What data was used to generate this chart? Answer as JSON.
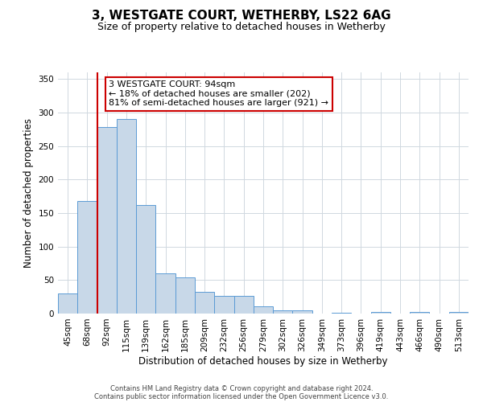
{
  "title": "3, WESTGATE COURT, WETHERBY, LS22 6AG",
  "subtitle": "Size of property relative to detached houses in Wetherby",
  "xlabel": "Distribution of detached houses by size in Wetherby",
  "ylabel": "Number of detached properties",
  "bar_labels": [
    "45sqm",
    "68sqm",
    "92sqm",
    "115sqm",
    "139sqm",
    "162sqm",
    "185sqm",
    "209sqm",
    "232sqm",
    "256sqm",
    "279sqm",
    "302sqm",
    "326sqm",
    "349sqm",
    "373sqm",
    "396sqm",
    "419sqm",
    "443sqm",
    "466sqm",
    "490sqm",
    "513sqm"
  ],
  "bar_values": [
    30,
    168,
    278,
    291,
    162,
    60,
    54,
    33,
    27,
    27,
    11,
    5,
    5,
    0,
    1,
    0,
    2,
    0,
    3,
    0,
    3
  ],
  "bar_color": "#c8d8e8",
  "bar_edge_color": "#5b9bd5",
  "vline_x_index": 2,
  "vline_color": "#cc0000",
  "annotation_text": "3 WESTGATE COURT: 94sqm\n← 18% of detached houses are smaller (202)\n81% of semi-detached houses are larger (921) →",
  "annotation_box_color": "#ffffff",
  "annotation_box_edge": "#cc0000",
  "ylim": [
    0,
    360
  ],
  "yticks": [
    0,
    50,
    100,
    150,
    200,
    250,
    300,
    350
  ],
  "footer_lines": [
    "Contains HM Land Registry data © Crown copyright and database right 2024.",
    "Contains public sector information licensed under the Open Government Licence v3.0."
  ],
  "background_color": "#ffffff",
  "grid_color": "#d0d8e0",
  "title_fontsize": 11,
  "subtitle_fontsize": 9,
  "ylabel_fontsize": 8.5,
  "xlabel_fontsize": 8.5,
  "tick_fontsize": 7.5,
  "annotation_fontsize": 8,
  "footer_fontsize": 6
}
